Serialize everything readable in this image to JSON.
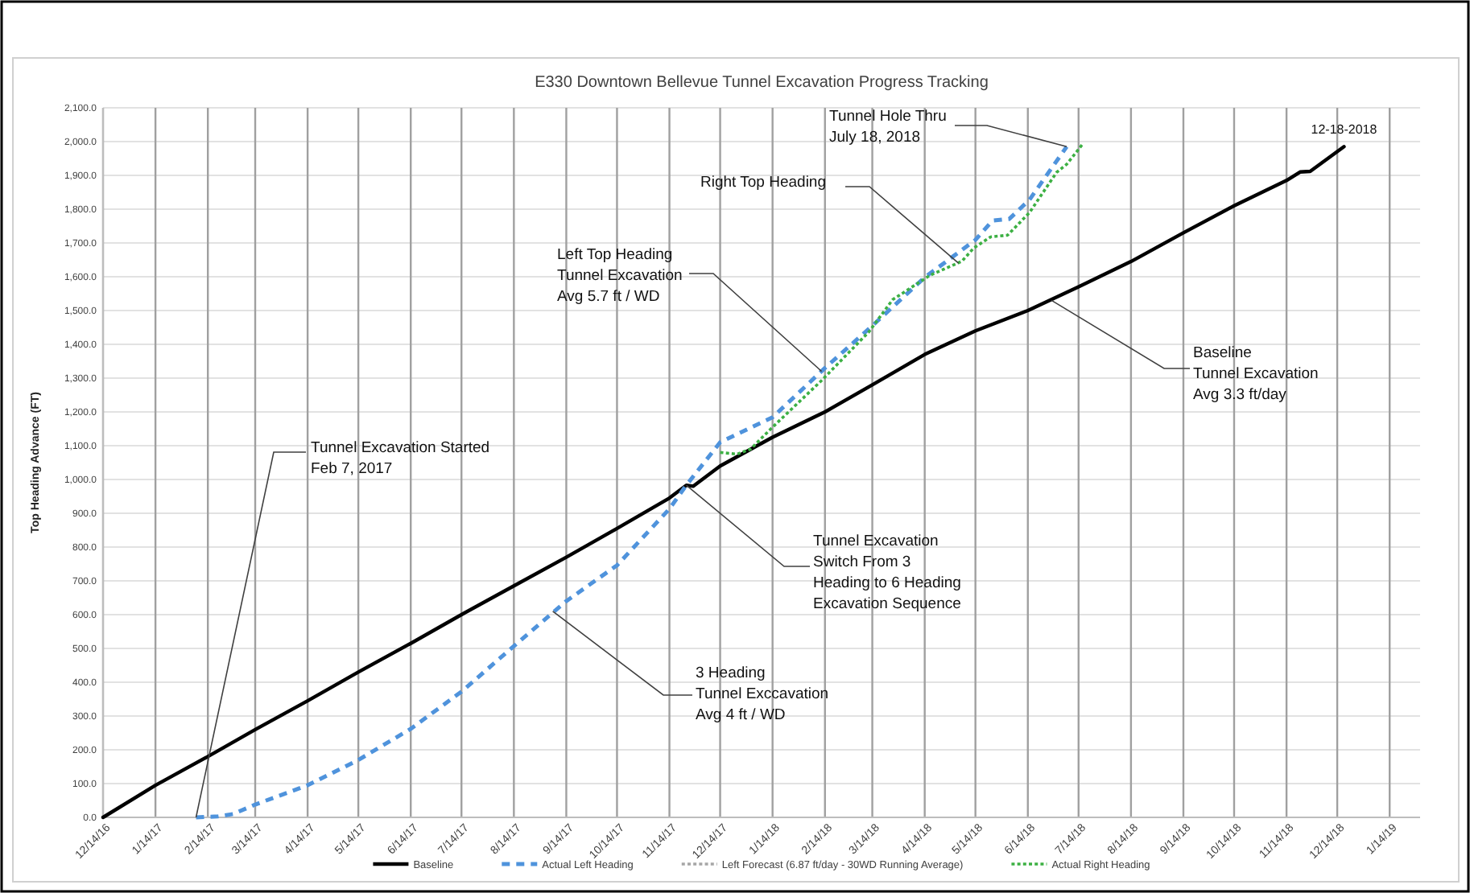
{
  "chart_data": {
    "type": "line",
    "title": "E330 Downtown Bellevue Tunnel Excavation Progress Tracking",
    "ylabel": "Top Heading Advance (FT)",
    "xlim": [
      "2016-12-14",
      "2019-02-01"
    ],
    "xticks": [
      {
        "value": "2016-12-14",
        "label": "12/14/16"
      },
      {
        "value": "2017-01-14",
        "label": "1/14/17"
      },
      {
        "value": "2017-02-14",
        "label": "2/14/17"
      },
      {
        "value": "2017-03-14",
        "label": "3/14/17"
      },
      {
        "value": "2017-04-14",
        "label": "4/14/17"
      },
      {
        "value": "2017-05-14",
        "label": "5/14/17"
      },
      {
        "value": "2017-06-14",
        "label": "6/14/17"
      },
      {
        "value": "2017-07-14",
        "label": "7/14/17"
      },
      {
        "value": "2017-08-14",
        "label": "8/14/17"
      },
      {
        "value": "2017-09-14",
        "label": "9/14/17"
      },
      {
        "value": "2017-10-14",
        "label": "10/14/17"
      },
      {
        "value": "2017-11-14",
        "label": "11/14/17"
      },
      {
        "value": "2017-12-14",
        "label": "12/14/17"
      },
      {
        "value": "2018-01-14",
        "label": "1/14/18"
      },
      {
        "value": "2018-02-14",
        "label": "2/14/18"
      },
      {
        "value": "2018-03-14",
        "label": "3/14/18"
      },
      {
        "value": "2018-04-14",
        "label": "4/14/18"
      },
      {
        "value": "2018-05-14",
        "label": "5/14/18"
      },
      {
        "value": "2018-06-14",
        "label": "6/14/18"
      },
      {
        "value": "2018-07-14",
        "label": "7/14/18"
      },
      {
        "value": "2018-08-14",
        "label": "8/14/18"
      },
      {
        "value": "2018-09-14",
        "label": "9/14/18"
      },
      {
        "value": "2018-10-14",
        "label": "10/14/18"
      },
      {
        "value": "2018-11-14",
        "label": "11/14/18"
      },
      {
        "value": "2018-12-14",
        "label": "12/14/18"
      },
      {
        "value": "2019-01-14",
        "label": "1/14/19"
      }
    ],
    "ylim": [
      0,
      2100
    ],
    "yticks": [
      {
        "value": 0,
        "label": "0.0"
      },
      {
        "value": 100,
        "label": "100.0"
      },
      {
        "value": 200,
        "label": "200.0"
      },
      {
        "value": 300,
        "label": "300.0"
      },
      {
        "value": 400,
        "label": "400.0"
      },
      {
        "value": 500,
        "label": "500.0"
      },
      {
        "value": 600,
        "label": "600.0"
      },
      {
        "value": 700,
        "label": "700.0"
      },
      {
        "value": 800,
        "label": "800.0"
      },
      {
        "value": 900,
        "label": "900.0"
      },
      {
        "value": 1000,
        "label": "1,000.0"
      },
      {
        "value": 1100,
        "label": "1,100.0"
      },
      {
        "value": 1200,
        "label": "1,200.0"
      },
      {
        "value": 1300,
        "label": "1,300.0"
      },
      {
        "value": 1400,
        "label": "1,400.0"
      },
      {
        "value": 1500,
        "label": "1,500.0"
      },
      {
        "value": 1600,
        "label": "1,600.0"
      },
      {
        "value": 1700,
        "label": "1,700.0"
      },
      {
        "value": 1800,
        "label": "1,800.0"
      },
      {
        "value": 1900,
        "label": "1,900.0"
      },
      {
        "value": 2000,
        "label": "2,000.0"
      },
      {
        "value": 2100,
        "label": "2,100.0"
      }
    ],
    "grid": true,
    "legend": "bottom",
    "marker": "none",
    "series": [
      {
        "name": "Baseline",
        "color": "#000000",
        "line_style": "solid",
        "x": [
          "2016-12-14",
          "2017-01-14",
          "2017-02-14",
          "2017-03-14",
          "2017-04-14",
          "2017-05-14",
          "2017-06-14",
          "2017-07-14",
          "2017-08-14",
          "2017-09-14",
          "2017-10-14",
          "2017-11-14",
          "2017-11-24",
          "2017-11-28",
          "2017-12-14",
          "2018-01-14",
          "2018-02-14",
          "2018-03-14",
          "2018-04-14",
          "2018-05-14",
          "2018-06-14",
          "2018-07-14",
          "2018-08-14",
          "2018-09-14",
          "2018-10-14",
          "2018-11-14",
          "2018-11-22",
          "2018-11-28",
          "2018-12-18"
        ],
        "values": [
          0,
          95,
          180,
          260,
          345,
          430,
          515,
          600,
          685,
          770,
          855,
          945,
          983,
          980,
          1040,
          1125,
          1200,
          1280,
          1370,
          1440,
          1500,
          1570,
          1645,
          1730,
          1810,
          1885,
          1910,
          1912,
          1985
        ]
      },
      {
        "name": "Actual Left Heading",
        "color": "#4f93dc",
        "line_style": "dashed",
        "x": [
          "2017-02-07",
          "2017-02-20",
          "2017-03-01",
          "2017-03-14",
          "2017-04-14",
          "2017-05-14",
          "2017-06-14",
          "2017-07-14",
          "2017-08-14",
          "2017-09-14",
          "2017-10-14",
          "2017-11-14",
          "2017-11-24",
          "2017-12-14",
          "2018-01-14",
          "2018-02-14",
          "2018-03-14",
          "2018-04-14",
          "2018-05-01",
          "2018-05-14",
          "2018-05-24",
          "2018-06-03",
          "2018-06-15",
          "2018-06-27",
          "2018-07-07"
        ],
        "values": [
          0,
          3,
          10,
          38,
          95,
          170,
          262,
          372,
          507,
          640,
          746,
          913,
          983,
          1110,
          1184,
          1330,
          1455,
          1598,
          1661,
          1709,
          1766,
          1771,
          1828,
          1914,
          1985
        ]
      },
      {
        "name": "Left Forecast (6.87 ft/day - 30WD Running Average)",
        "color": "#a6a6a6",
        "line_style": "dotted"
      },
      {
        "name": "Actual Right Heading",
        "color": "#3cb043",
        "line_style": "dotted",
        "x": [
          "2017-12-14",
          "2017-12-24",
          "2018-01-01",
          "2018-01-13",
          "2018-02-12",
          "2018-03-12",
          "2018-03-26",
          "2018-04-17",
          "2018-05-06",
          "2018-05-13",
          "2018-05-23",
          "2018-06-02",
          "2018-06-15",
          "2018-07-01",
          "2018-07-07",
          "2018-07-16"
        ],
        "values": [
          1080,
          1075,
          1090,
          1150,
          1293,
          1437,
          1532,
          1604,
          1646,
          1685,
          1718,
          1723,
          1790,
          1909,
          1933,
          1990
        ]
      }
    ],
    "annotations": [
      {
        "text": "Tunnel Excavation Started\nFeb 7, 2017",
        "x": "2017-02-07",
        "y": 0
      },
      {
        "text": "3 Heading\nTunnel Exccavation\nAvg 4 ft / WD",
        "x": "2017-09-06",
        "y": 610
      },
      {
        "text": "Tunnel Excavation\nSwitch From 3\nHeading to 6 Heading\nExcavation Sequence",
        "x": "2017-11-24",
        "y": 983
      },
      {
        "text": "Left Top Heading\nTunnel Excavation\nAvg 5.7 ft / WD",
        "x": "2018-02-12",
        "y": 1320
      },
      {
        "text": "Right Top Heading",
        "x": "2018-05-04",
        "y": 1640
      },
      {
        "text": "Tunnel Hole Thru\nJuly 18, 2018",
        "x": "2018-07-07",
        "y": 1985
      },
      {
        "text": "Baseline\nTunnel Excavation\nAvg 3.3 ft/day",
        "x": "2018-06-28",
        "y": 1530
      },
      {
        "text": "12-18-2018",
        "x": "2018-12-18",
        "y": 1985
      }
    ]
  }
}
